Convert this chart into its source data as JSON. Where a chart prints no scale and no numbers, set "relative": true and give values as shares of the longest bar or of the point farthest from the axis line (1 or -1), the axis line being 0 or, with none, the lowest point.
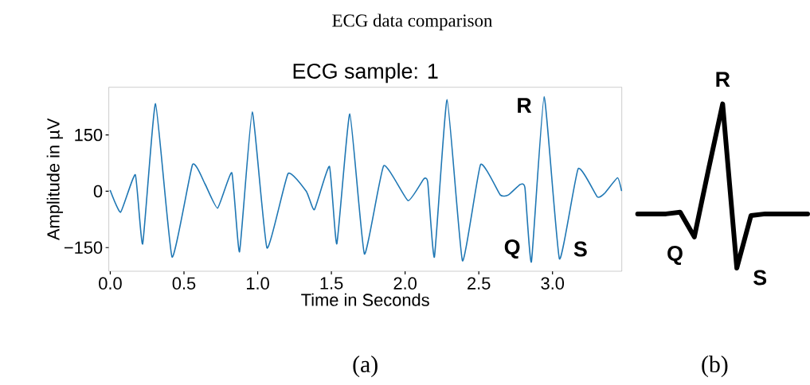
{
  "chart_data": [
    {
      "type": "line",
      "title": "ECG sample: 1",
      "xlabel": "Time in Seconds",
      "ylabel": "Amplitude in µV",
      "x": [
        0,
        0.07,
        0.17,
        0.22,
        0.307,
        0.419,
        0.558,
        0.642,
        0.728,
        0.825,
        0.877,
        0.963,
        1.063,
        1.206,
        1.331,
        1.385,
        1.487,
        1.537,
        1.625,
        1.724,
        1.855,
        2.02,
        2.127,
        2.154,
        2.199,
        2.285,
        2.389,
        2.512,
        2.646,
        2.7,
        2.78,
        2.813,
        2.857,
        2.943,
        3.047,
        3.174,
        3.304,
        3.352,
        3.441,
        3.468
      ],
      "series": [
        {
          "color": "#1f77b4",
          "values": [
            2,
            -56,
            44,
            -140,
            233,
            -175,
            71,
            20,
            -45,
            49,
            -161,
            211,
            -151,
            47,
            -1,
            -49,
            66,
            -140,
            206,
            -167,
            68,
            -25,
            33,
            23,
            -175,
            244,
            -185,
            71,
            -10,
            -10,
            18,
            9,
            -188,
            252,
            -180,
            60,
            -15,
            -6,
            36,
            2
          ]
        }
      ],
      "xlim": [
        -0.01,
        3.47
      ],
      "ylim": [
        -213,
        277
      ],
      "xticks": [
        {
          "value": 0,
          "label": "0.0"
        },
        {
          "value": 0.5,
          "label": "0.5"
        },
        {
          "value": 1,
          "label": "1.0"
        },
        {
          "value": 1.5,
          "label": "1.5"
        },
        {
          "value": 2,
          "label": "2.0"
        },
        {
          "value": 2.5,
          "label": "2.5"
        },
        {
          "value": 3,
          "label": "3.0"
        }
      ],
      "yticks": [
        {
          "value": -150,
          "label": "−150"
        },
        0,
        150
      ],
      "line_style": "solid",
      "marker": "none",
      "annotations": [
        "ECG data comparison",
        "(a)",
        "**Q**",
        "**R**",
        "**S**"
      ]
    },
    {
      "type": "line",
      "relative": true,
      "categories": [
        null,
        null,
        null,
        null,
        null,
        null,
        null,
        null,
        null,
        null,
        null,
        null,
        null
      ],
      "series": [
        {
          "color": "#000000",
          "values": [
            0.33,
            0.33,
            0.33,
            0.34,
            0.19,
            0.6,
            1,
            0,
            0.32,
            0.33,
            0.33,
            0.33,
            0.33
          ]
        }
      ],
      "line_style": "solid",
      "marker": "none",
      "annotations": [
        "(b)",
        "**Q**",
        "**R**",
        "**S**"
      ]
    }
  ]
}
